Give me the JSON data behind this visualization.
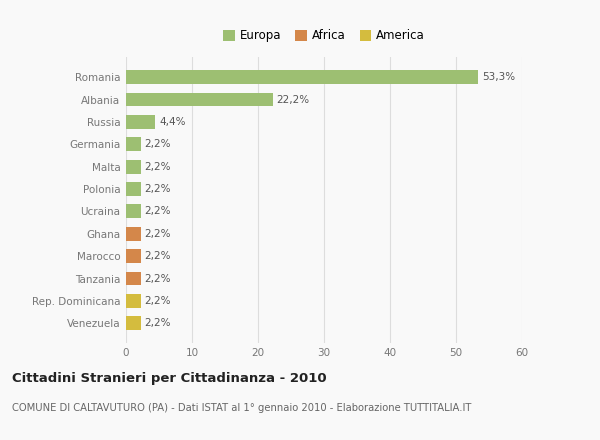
{
  "categories": [
    "Venezuela",
    "Rep. Dominicana",
    "Tanzania",
    "Marocco",
    "Ghana",
    "Ucraina",
    "Polonia",
    "Malta",
    "Germania",
    "Russia",
    "Albania",
    "Romania"
  ],
  "values": [
    2.2,
    2.2,
    2.2,
    2.2,
    2.2,
    2.2,
    2.2,
    2.2,
    2.2,
    4.4,
    22.2,
    53.3
  ],
  "colors": [
    "#d4bc3e",
    "#d4bc3e",
    "#d4874a",
    "#d4874a",
    "#d4874a",
    "#9dbf72",
    "#9dbf72",
    "#9dbf72",
    "#9dbf72",
    "#9dbf72",
    "#9dbf72",
    "#9dbf72"
  ],
  "bar_labels": [
    "2,2%",
    "2,2%",
    "2,2%",
    "2,2%",
    "2,2%",
    "2,2%",
    "2,2%",
    "2,2%",
    "2,2%",
    "4,4%",
    "22,2%",
    "53,3%"
  ],
  "xlim": [
    0,
    60
  ],
  "xticks": [
    0,
    10,
    20,
    30,
    40,
    50,
    60
  ],
  "legend_labels": [
    "Europa",
    "Africa",
    "America"
  ],
  "legend_colors": [
    "#9dbf72",
    "#d4874a",
    "#d4bc3e"
  ],
  "title": "Cittadini Stranieri per Cittadinanza - 2010",
  "subtitle": "COMUNE DI CALTAVUTURO (PA) - Dati ISTAT al 1° gennaio 2010 - Elaborazione TUTTITALIA.IT",
  "bg_color": "#f9f9f9",
  "grid_color": "#dddddd",
  "label_color": "#777777",
  "text_color": "#555555"
}
